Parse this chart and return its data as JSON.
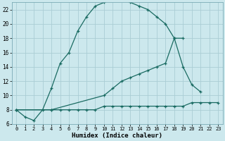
{
  "xlabel": "Humidex (Indice chaleur)",
  "bg_color": "#cce8ed",
  "grid_color": "#aacdd5",
  "line_color": "#1a6b62",
  "xlim": [
    -0.5,
    23.5
  ],
  "ylim": [
    6,
    23
  ],
  "xticks": [
    0,
    1,
    2,
    3,
    4,
    5,
    6,
    7,
    8,
    9,
    10,
    11,
    12,
    13,
    14,
    15,
    16,
    17,
    18,
    19,
    20,
    21,
    22,
    23
  ],
  "yticks": [
    6,
    8,
    10,
    12,
    14,
    16,
    18,
    20,
    22
  ],
  "line1_x": [
    0,
    1,
    2,
    3,
    4,
    5,
    6,
    7,
    8,
    9,
    10,
    11,
    12,
    13,
    14,
    15,
    16,
    17,
    18,
    19
  ],
  "line1_y": [
    8,
    7,
    6.5,
    8,
    11,
    14.5,
    16,
    19,
    21,
    22.5,
    23,
    23.5,
    23.5,
    23,
    22.5,
    22,
    21,
    20,
    18,
    18
  ],
  "line2_x": [
    0,
    4,
    5,
    6,
    7,
    8,
    9,
    10,
    11,
    12,
    13,
    14,
    15,
    16,
    17,
    18,
    19,
    20,
    21,
    22,
    23
  ],
  "line2_y": [
    8,
    8,
    8,
    8,
    8,
    8,
    8,
    8.5,
    8.5,
    8.5,
    8.5,
    8.5,
    8.5,
    8.5,
    8.5,
    8.5,
    8.5,
    9,
    9,
    9,
    9
  ],
  "line3_x": [
    0,
    4,
    10,
    11,
    12,
    13,
    14,
    15,
    16,
    17,
    18,
    19,
    20,
    21
  ],
  "line3_y": [
    8,
    8,
    10,
    11,
    12,
    12.5,
    13,
    13.5,
    14,
    14.5,
    18,
    14,
    11.5,
    10.5
  ]
}
